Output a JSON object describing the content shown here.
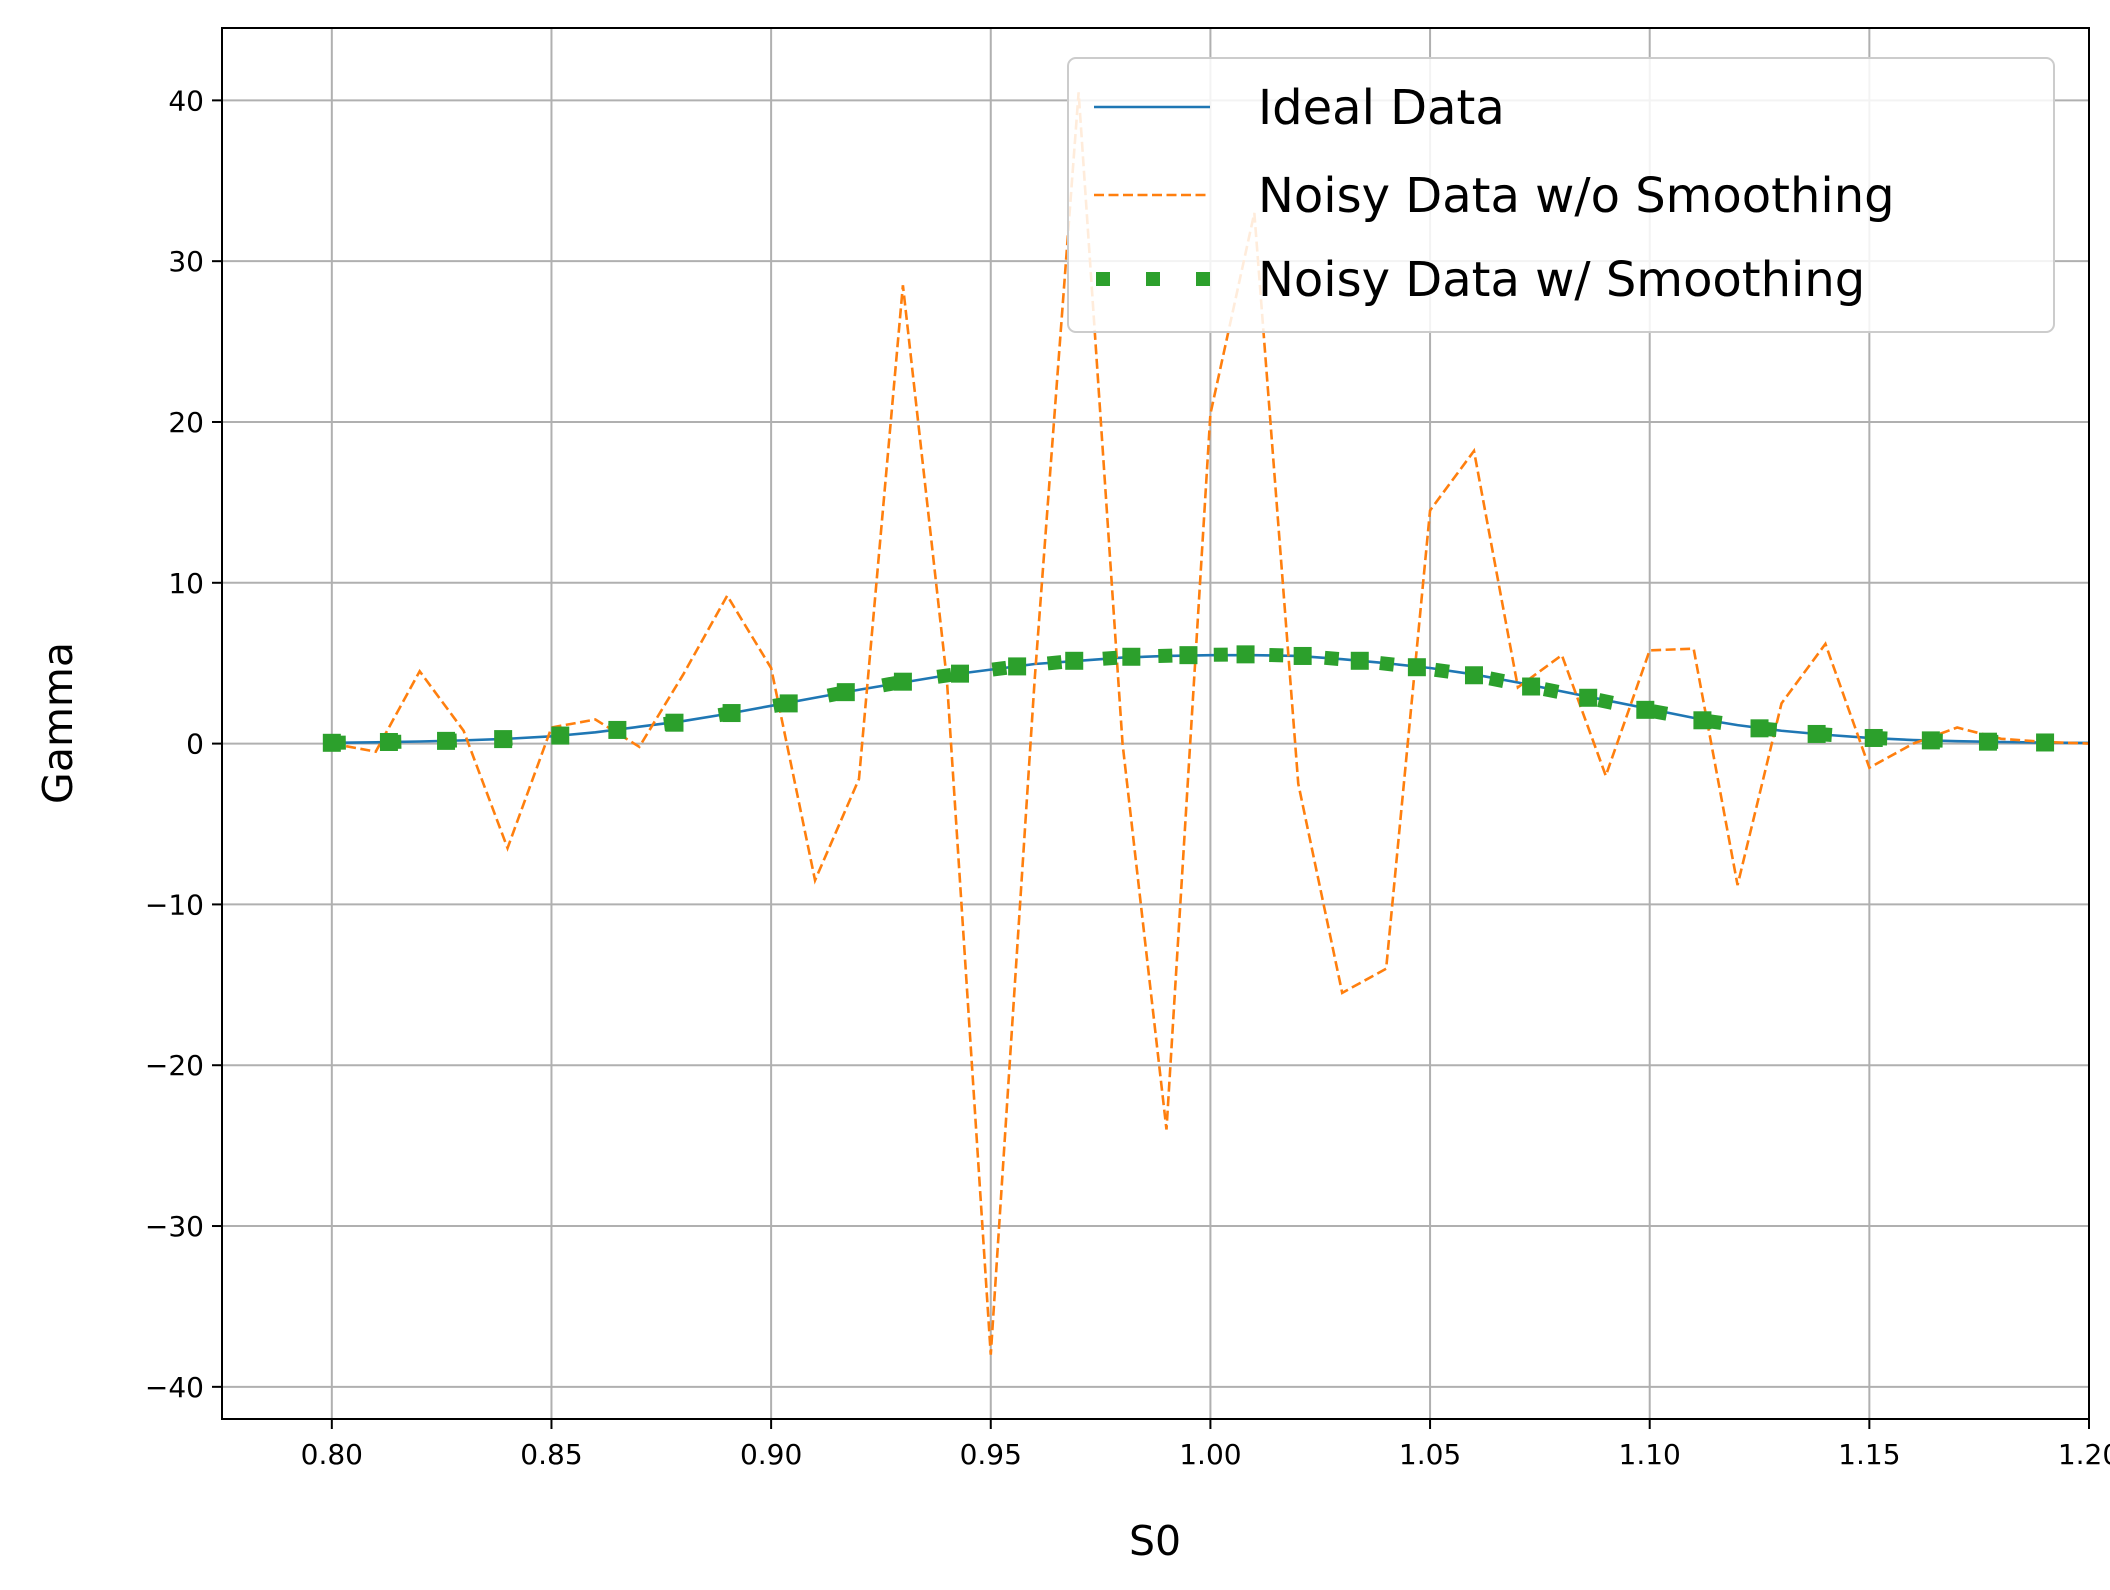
{
  "chart_data": {
    "type": "line",
    "title": "",
    "xlabel": "S0",
    "ylabel": "Gamma",
    "xlim": [
      0.775,
      1.2
    ],
    "ylim": [
      -42,
      44.5
    ],
    "xticks": [
      0.8,
      0.85,
      0.9,
      0.95,
      1.0,
      1.05,
      1.1,
      1.15,
      1.2
    ],
    "xtick_labels": [
      "0.80",
      "0.85",
      "0.90",
      "0.95",
      "1.00",
      "1.05",
      "1.10",
      "1.15",
      "1.20"
    ],
    "yticks": [
      -40,
      -30,
      -20,
      -10,
      0,
      10,
      20,
      30,
      40
    ],
    "ytick_labels": [
      "−40",
      "−30",
      "−20",
      "−10",
      "0",
      "10",
      "20",
      "30",
      "40"
    ],
    "grid": true,
    "legend_position": "top-right",
    "series": [
      {
        "name": "Ideal Data",
        "style": "solid",
        "color": "#1f77b4",
        "x": [
          0.8,
          0.81,
          0.82,
          0.83,
          0.84,
          0.85,
          0.86,
          0.87,
          0.88,
          0.89,
          0.9,
          0.91,
          0.92,
          0.93,
          0.94,
          0.95,
          0.96,
          0.97,
          0.98,
          0.99,
          1.0,
          1.01,
          1.02,
          1.03,
          1.04,
          1.05,
          1.06,
          1.07,
          1.08,
          1.09,
          1.1,
          1.11,
          1.12,
          1.13,
          1.14,
          1.15,
          1.16,
          1.17,
          1.18,
          1.19,
          1.2
        ],
        "y": [
          0.05,
          0.08,
          0.13,
          0.2,
          0.3,
          0.45,
          0.7,
          1.05,
          1.4,
          1.85,
          2.35,
          2.85,
          3.35,
          3.8,
          4.25,
          4.6,
          4.95,
          5.15,
          5.35,
          5.45,
          5.5,
          5.5,
          5.45,
          5.25,
          5.0,
          4.7,
          4.3,
          3.8,
          3.25,
          2.7,
          2.15,
          1.6,
          1.15,
          0.8,
          0.55,
          0.35,
          0.22,
          0.15,
          0.1,
          0.06,
          0.04
        ]
      },
      {
        "name": "Noisy Data w/o Smoothing",
        "style": "dashed",
        "color": "#ff7f0e",
        "x": [
          0.8,
          0.81,
          0.82,
          0.83,
          0.84,
          0.85,
          0.86,
          0.87,
          0.88,
          0.89,
          0.9,
          0.91,
          0.92,
          0.93,
          0.94,
          0.95,
          0.96,
          0.97,
          0.98,
          0.99,
          1.0,
          1.01,
          1.02,
          1.03,
          1.04,
          1.05,
          1.06,
          1.07,
          1.08,
          1.09,
          1.1,
          1.11,
          1.12,
          1.13,
          1.14,
          1.15,
          1.16,
          1.17,
          1.18,
          1.19,
          1.2
        ],
        "y": [
          0.0,
          -0.5,
          4.5,
          0.8,
          -6.5,
          1.0,
          1.5,
          -0.2,
          4.3,
          9.2,
          4.7,
          -8.5,
          -2.2,
          28.5,
          4.0,
          -38.0,
          4.0,
          40.5,
          0.0,
          -24.0,
          20.5,
          33.0,
          -2.5,
          -15.5,
          -14.0,
          14.5,
          18.2,
          3.5,
          5.5,
          -2.0,
          5.8,
          5.9,
          -8.8,
          2.5,
          6.2,
          -1.5,
          0.0,
          1.0,
          0.3,
          0.1,
          0.0
        ]
      },
      {
        "name": "Noisy Data w/ Smoothing",
        "style": "dotted",
        "color": "#2ca02c",
        "x": [
          0.8,
          0.813,
          0.826,
          0.839,
          0.852,
          0.865,
          0.878,
          0.891,
          0.904,
          0.917,
          0.93,
          0.943,
          0.956,
          0.969,
          0.982,
          0.995,
          1.008,
          1.021,
          1.034,
          1.047,
          1.06,
          1.073,
          1.086,
          1.099,
          1.112,
          1.125,
          1.138,
          1.151,
          1.164,
          1.177,
          1.19
        ],
        "y": [
          0.05,
          0.1,
          0.17,
          0.28,
          0.5,
          0.85,
          1.3,
          1.9,
          2.5,
          3.2,
          3.85,
          4.35,
          4.8,
          5.15,
          5.4,
          5.5,
          5.55,
          5.45,
          5.15,
          4.75,
          4.25,
          3.55,
          2.85,
          2.1,
          1.45,
          0.95,
          0.6,
          0.35,
          0.2,
          0.12,
          0.07
        ]
      }
    ]
  }
}
